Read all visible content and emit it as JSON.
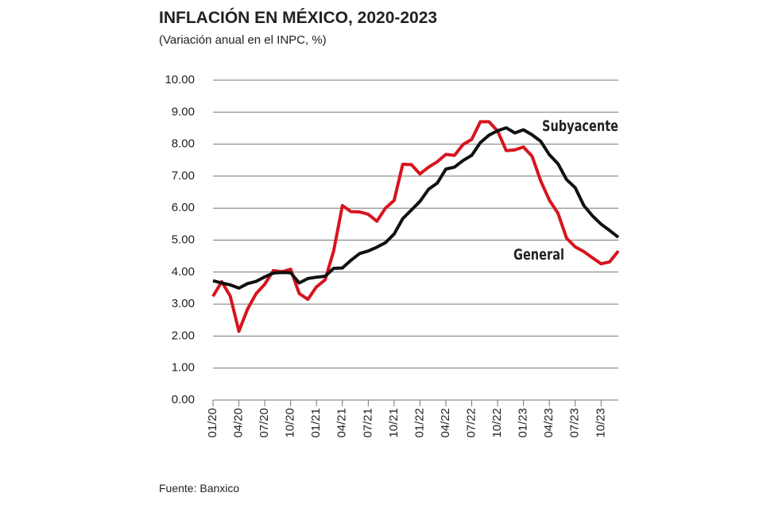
{
  "chart_data": {
    "type": "line",
    "title": "INFLACIÓN EN MÉXICO, 2020-2023",
    "subtitle": "(Variación anual en el INPC, %)",
    "source": "Fuente: Banxico",
    "categories": [
      "01/20",
      null,
      null,
      "04/20",
      null,
      null,
      "07/20",
      null,
      null,
      "10/20",
      null,
      null,
      "01/21",
      null,
      null,
      "04/21",
      null,
      null,
      "07/21",
      null,
      null,
      "10/21",
      null,
      null,
      "01/22",
      null,
      null,
      "04/22",
      null,
      null,
      "07/22",
      null,
      null,
      "10/22",
      null,
      null,
      "01/23",
      null,
      null,
      "04/23",
      null,
      null,
      "07/23",
      null,
      null,
      "10/23",
      null,
      null
    ],
    "series": [
      {
        "name": "Subyacente",
        "color": "#111111",
        "values": [
          3.73,
          3.66,
          3.6,
          3.5,
          3.64,
          3.71,
          3.85,
          3.97,
          3.99,
          3.98,
          3.66,
          3.8,
          3.84,
          3.87,
          4.12,
          4.13,
          4.37,
          4.58,
          4.66,
          4.78,
          4.92,
          5.19,
          5.67,
          5.94,
          6.21,
          6.59,
          6.78,
          7.22,
          7.28,
          7.49,
          7.65,
          8.05,
          8.28,
          8.42,
          8.51,
          8.35,
          8.45,
          8.29,
          8.09,
          7.67,
          7.39,
          6.89,
          6.64,
          6.08,
          5.76,
          5.5,
          5.3,
          5.09
        ]
      },
      {
        "name": "General",
        "color": "#d7141f",
        "values": [
          3.24,
          3.7,
          3.25,
          2.15,
          2.84,
          3.33,
          3.62,
          4.05,
          4.01,
          4.09,
          3.33,
          3.15,
          3.54,
          3.76,
          4.67,
          6.08,
          5.89,
          5.88,
          5.81,
          5.59,
          6.0,
          6.24,
          7.37,
          7.36,
          7.07,
          7.28,
          7.45,
          7.68,
          7.65,
          7.99,
          8.15,
          8.7,
          8.7,
          8.41,
          7.8,
          7.82,
          7.91,
          7.62,
          6.85,
          6.25,
          5.84,
          5.06,
          4.79,
          4.64,
          4.45,
          4.26,
          4.32,
          4.66
        ]
      }
    ],
    "ylim": [
      0,
      10
    ],
    "yticks": [
      {
        "value": 0,
        "label": "0.00"
      },
      {
        "value": 1,
        "label": "1.00"
      },
      {
        "value": 2,
        "label": "2.00"
      },
      {
        "value": 3,
        "label": "3.00"
      },
      {
        "value": 4,
        "label": "4.00"
      },
      {
        "value": 5,
        "label": "5.00"
      },
      {
        "value": 6,
        "label": "6.00"
      },
      {
        "value": 7,
        "label": "7.00"
      },
      {
        "value": 8,
        "label": "8.00"
      },
      {
        "value": 9,
        "label": "9.00"
      },
      {
        "value": 10,
        "label": "10.00"
      }
    ],
    "grid": true
  }
}
